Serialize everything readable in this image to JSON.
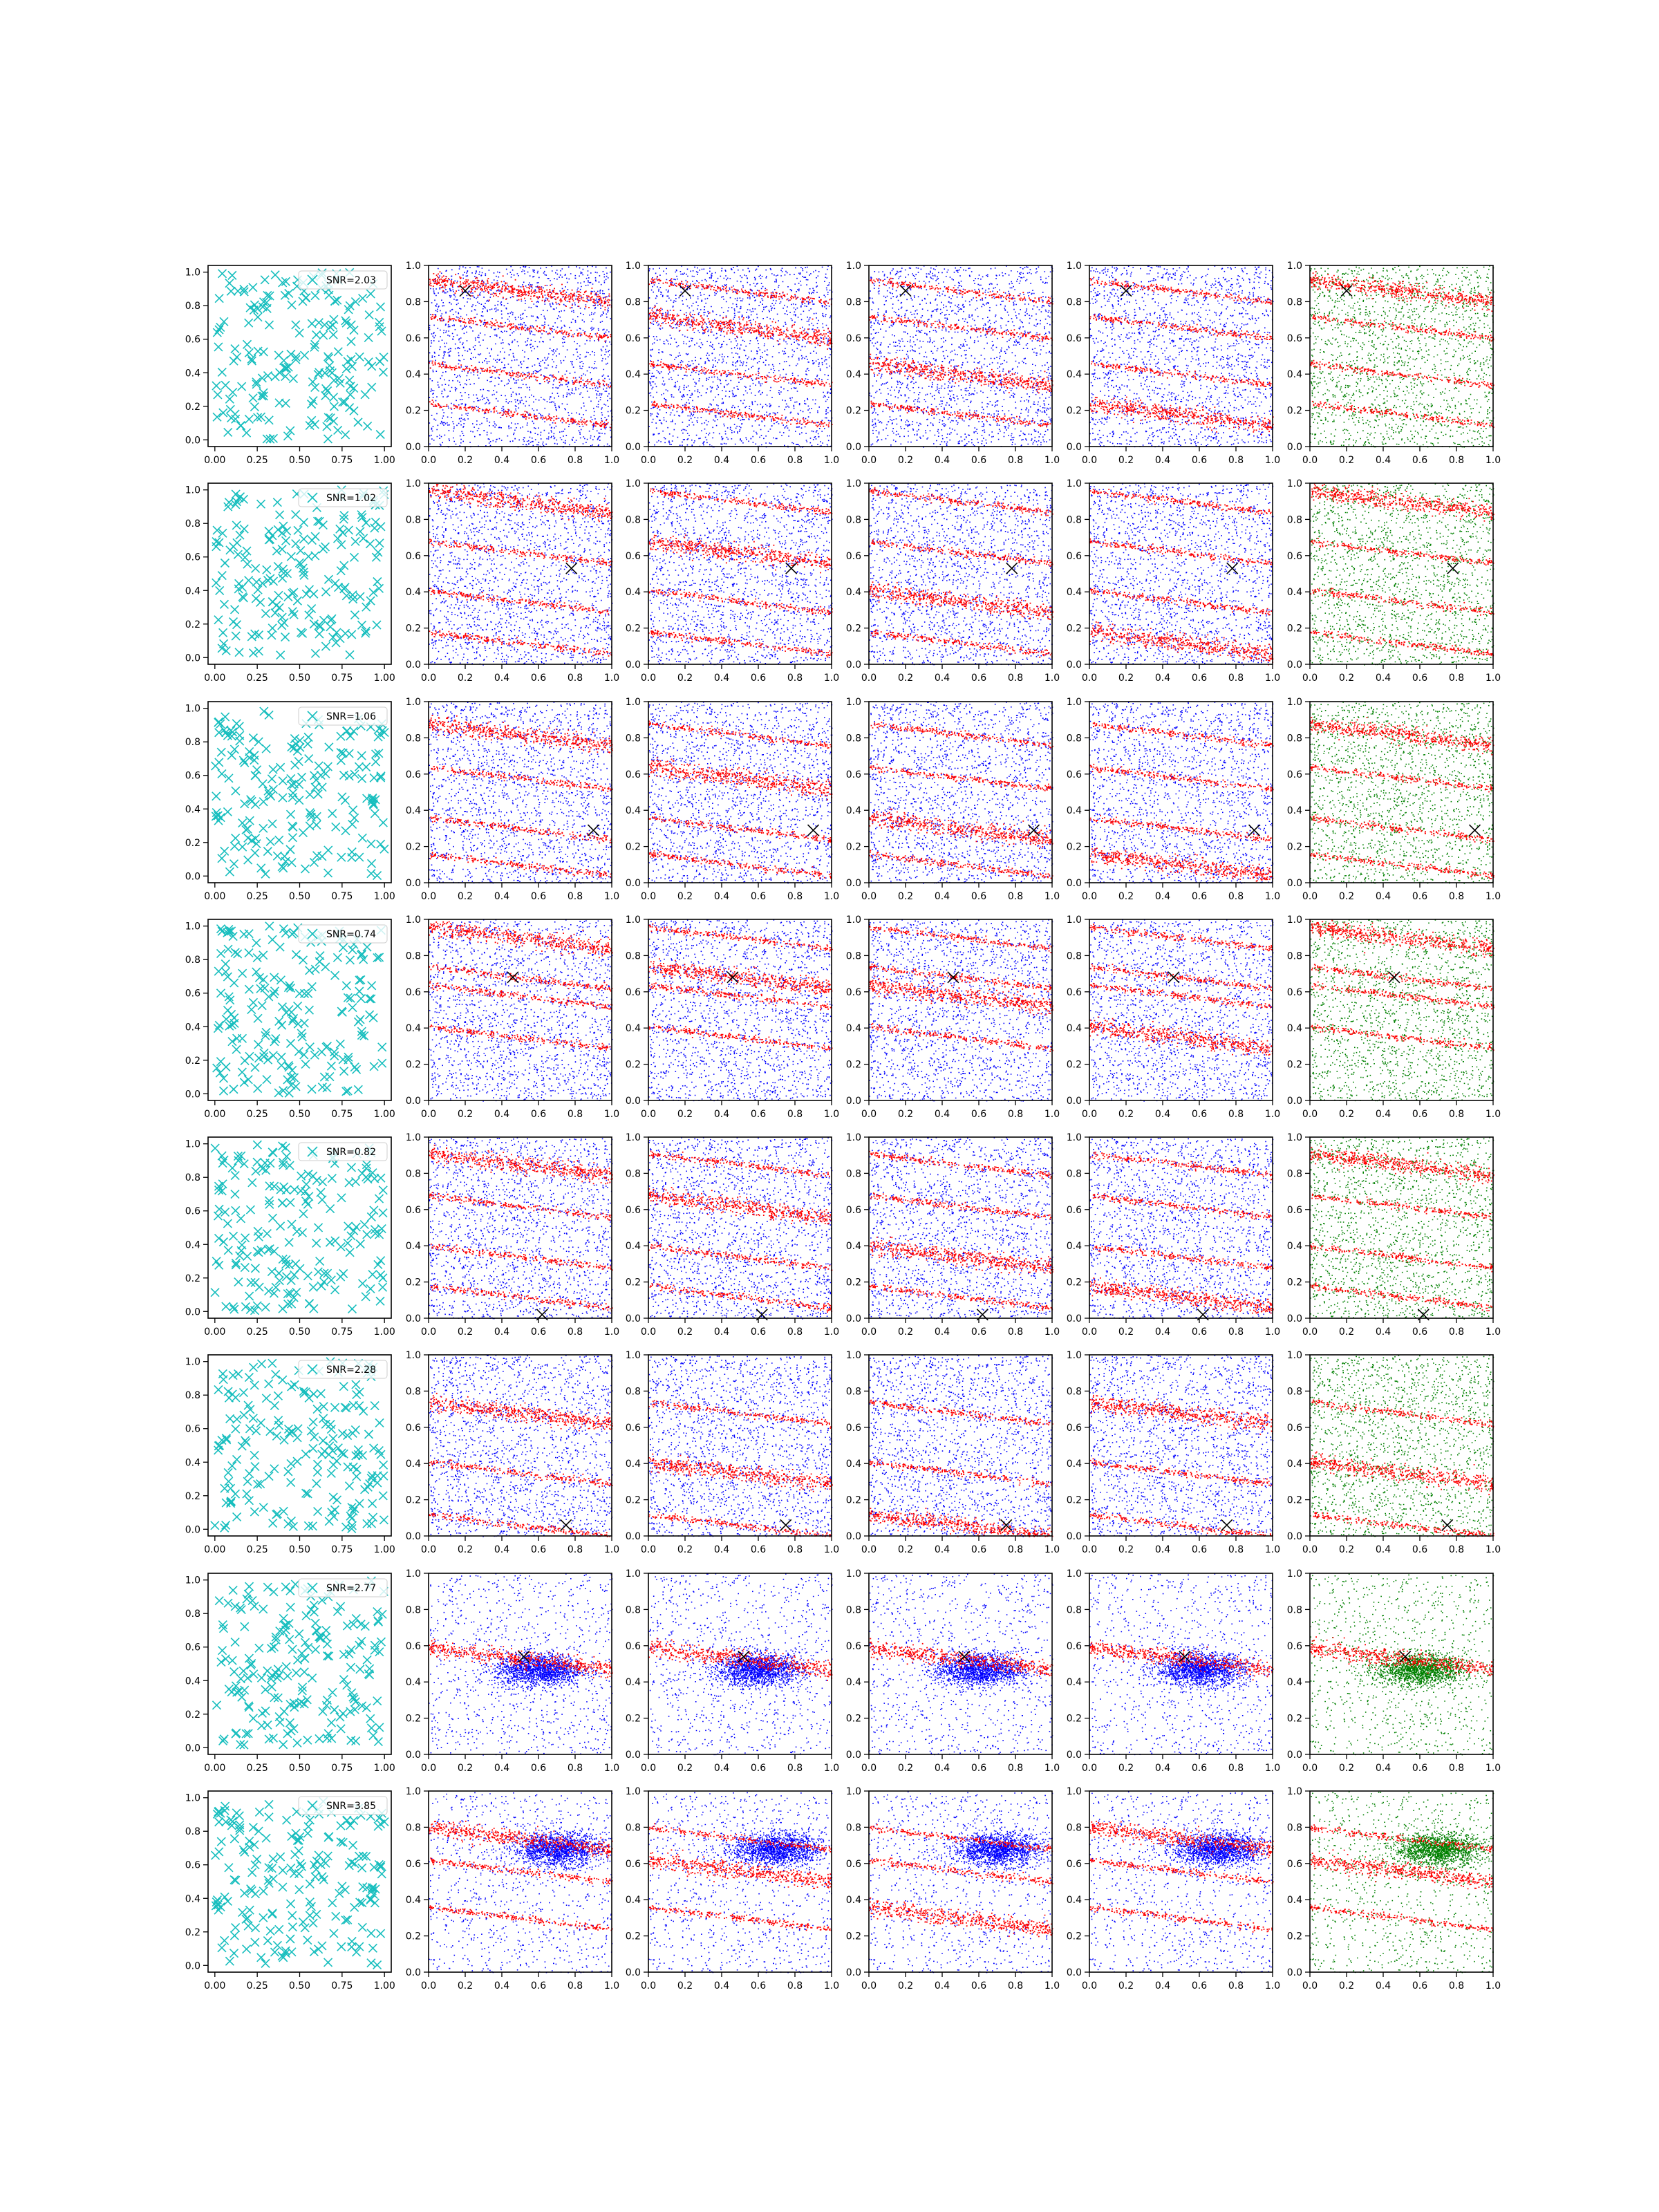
{
  "figure": {
    "rows": 8,
    "cols": 6,
    "column_kinds": [
      "scatter-x-markers",
      "scatter-red-blue",
      "scatter-red-blue",
      "scatter-red-blue",
      "scatter-red-blue",
      "scatter-red-green"
    ]
  },
  "colors": {
    "cyan_marker": "#17bebe",
    "red": "#ff0000",
    "blue": "#0000ff",
    "green": "#008000",
    "black_marker": "#000000",
    "axes": "#000000"
  },
  "chart_data": {
    "type": "scatter",
    "grid": false,
    "legend_placement": "upper right (first column only)",
    "first_column": {
      "xlim": [
        -0.04,
        1.04
      ],
      "ylim": [
        -0.04,
        1.04
      ],
      "xticks": [
        "0.00",
        "0.25",
        "0.50",
        "0.75",
        "1.00"
      ],
      "yticks": [
        "0.0",
        "0.2",
        "0.4",
        "0.6",
        "0.8",
        "1.0"
      ],
      "marker": "x",
      "color": "cyan",
      "points_per_panel_approx": 200
    },
    "other_columns": {
      "xlim": [
        0,
        1
      ],
      "ylim": [
        0,
        1
      ],
      "xticks": [
        "0.0",
        "0.2",
        "0.4",
        "0.6",
        "0.8",
        "1.0"
      ],
      "yticks": [
        "0.0",
        "0.2",
        "0.4",
        "0.6",
        "0.8",
        "1.0"
      ]
    },
    "rows": [
      {
        "snr_label": "SNR=2.03",
        "target": [
          0.2,
          0.86
        ],
        "stripes": [
          0.86,
          0.66,
          0.4,
          0.18
        ],
        "clusters": []
      },
      {
        "snr_label": "SNR=1.02",
        "target": [
          0.78,
          0.53
        ],
        "stripes": [
          0.9,
          0.62,
          0.35,
          0.12
        ],
        "clusters": []
      },
      {
        "snr_label": "SNR=1.06",
        "target": [
          0.9,
          0.29
        ],
        "stripes": [
          0.82,
          0.58,
          0.3,
          0.1
        ],
        "clusters": []
      },
      {
        "snr_label": "SNR=0.74",
        "target": [
          0.46,
          0.68
        ],
        "stripes": [
          0.9,
          0.68,
          0.58,
          0.35
        ],
        "clusters": []
      },
      {
        "snr_label": "SNR=0.82",
        "target": [
          0.62,
          0.02
        ],
        "stripes": [
          0.85,
          0.62,
          0.34,
          0.12
        ],
        "clusters": []
      },
      {
        "snr_label": "SNR=2.28",
        "target": [
          0.75,
          0.06
        ],
        "stripes": [
          0.68,
          0.35,
          0.06
        ],
        "clusters": []
      },
      {
        "snr_label": "SNR=2.77",
        "target": [
          0.52,
          0.54
        ],
        "stripes": [
          0.53
        ],
        "clusters": [
          [
            0.6,
            0.47
          ]
        ]
      },
      {
        "snr_label": "SNR=3.85",
        "target": [],
        "stripes": [
          0.74,
          0.56,
          0.3
        ],
        "clusters": [
          [
            0.7,
            0.68
          ]
        ]
      }
    ]
  }
}
